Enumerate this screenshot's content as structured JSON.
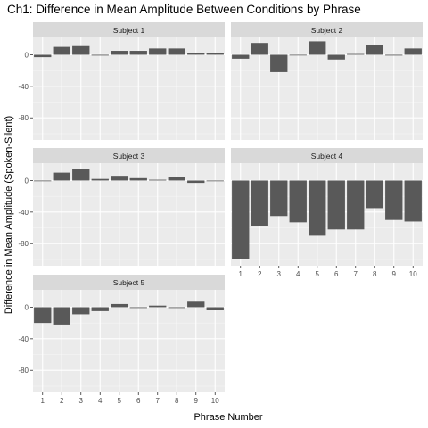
{
  "chart_data": {
    "type": "bar",
    "title": "Ch1: Difference in Mean Amplitude Between Conditions by Phrase",
    "xlabel": "Phrase Number",
    "ylabel": "Difference in Mean Amplitude (Spoken-Silent)",
    "categories": [
      "1",
      "2",
      "3",
      "4",
      "5",
      "6",
      "7",
      "8",
      "9",
      "10"
    ],
    "y_ticks": [
      0,
      -40,
      -80
    ],
    "y_tick_labels": [
      "0",
      "-40",
      "-80"
    ],
    "ylim": [
      -108,
      22
    ],
    "grid": true,
    "facet_layout": "2 columns, 3 rows",
    "colors": {
      "bar": "#595959",
      "panel_background": "#ebebeb",
      "grid_major": "#ffffff",
      "strip_background": "#d9d9d9"
    },
    "series": [
      {
        "name": "Subject 1",
        "values": [
          -3,
          10,
          11,
          -1,
          5,
          5,
          8,
          8,
          2,
          2
        ]
      },
      {
        "name": "Subject 2",
        "values": [
          -5,
          15,
          -22,
          0,
          17,
          -6,
          1,
          12,
          -1,
          8
        ]
      },
      {
        "name": "Subject 3",
        "values": [
          0,
          10,
          15,
          2,
          6,
          3,
          1,
          4,
          -3,
          0
        ]
      },
      {
        "name": "Subject 4",
        "values": [
          -99,
          -58,
          -45,
          -53,
          -70,
          -62,
          -62,
          -35,
          -50,
          -52
        ]
      },
      {
        "name": "Subject 5",
        "values": [
          -20,
          -22,
          -9,
          -5,
          4,
          -1,
          2,
          -1,
          7,
          -4
        ]
      }
    ]
  }
}
